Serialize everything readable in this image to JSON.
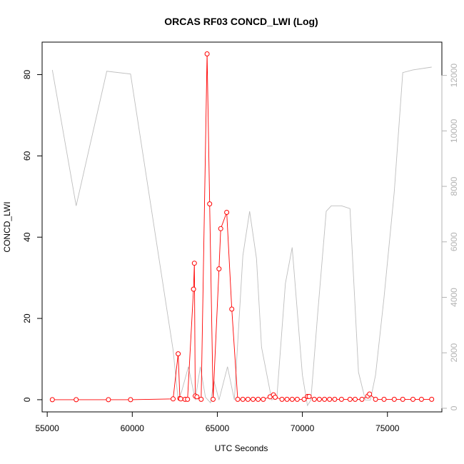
{
  "colors": {
    "primary_series": "#ff0000",
    "secondary_series": "#bebebe",
    "secondary_axis": "#b3b3b3",
    "axes": "#000000"
  },
  "chart_data": {
    "type": "line",
    "title": "ORCAS RF03 CONCD_LWI (Log)",
    "xlabel": "UTC Seconds",
    "ylabel": "CONCD_LWI",
    "y2label": "",
    "xlim": [
      54700,
      78200
    ],
    "ylim": [
      -3,
      88
    ],
    "y2lim": [
      -130,
      13200
    ],
    "x_ticks": [
      55000,
      60000,
      65000,
      70000,
      75000
    ],
    "x_tick_labels": [
      "55000",
      "60000",
      "65000",
      "70000",
      "75000"
    ],
    "y_ticks": [
      0,
      20,
      40,
      60,
      80
    ],
    "y_tick_labels": [
      "0",
      "20",
      "40",
      "60",
      "80"
    ],
    "y2_ticks": [
      0,
      2000,
      4000,
      6000,
      8000,
      10000,
      12000
    ],
    "y2_tick_labels": [
      "0",
      "2000",
      "4000",
      "6000",
      "8000",
      "10000",
      "12000"
    ],
    "grid": false,
    "series": [
      {
        "axis": "left",
        "style": "line+points",
        "x": [
          55300,
          56700,
          58600,
          59900,
          62400,
          62700,
          62800,
          62850,
          63100,
          63250,
          63600,
          63650,
          63700,
          63800,
          64050,
          64400,
          64550,
          64750,
          65100,
          65200,
          65550,
          65850,
          66200,
          66500,
          66800,
          67100,
          67400,
          67700,
          68100,
          68300,
          68400,
          68800,
          69100,
          69400,
          69700,
          70100,
          70300,
          70400,
          70700,
          71000,
          71300,
          71600,
          71900,
          72300,
          72800,
          73100,
          73500,
          73850,
          73950,
          74300,
          74800,
          75400,
          75900,
          76500,
          77000,
          77600
        ],
        "y": [
          0,
          0,
          0,
          0,
          0.2,
          11.3,
          0.3,
          0.2,
          0.1,
          0.1,
          27.2,
          33.6,
          0.9,
          0.7,
          0.1,
          85.1,
          48.2,
          0.1,
          32.2,
          42.1,
          46.1,
          22.3,
          0.1,
          0.1,
          0.1,
          0.1,
          0.1,
          0.1,
          0.7,
          1.2,
          0.6,
          0.1,
          0.1,
          0.1,
          0.1,
          0.1,
          0.8,
          0.8,
          0.1,
          0.1,
          0.1,
          0.1,
          0.1,
          0.1,
          0.1,
          0.1,
          0.1,
          0.9,
          1.4,
          0.1,
          0.1,
          0.1,
          0.1,
          0.1,
          0.1,
          0.1
        ]
      },
      {
        "axis": "right",
        "style": "line",
        "x": [
          55300,
          56700,
          58500,
          59900,
          62400,
          62700,
          62900,
          63300,
          63700,
          64000,
          64300,
          64600,
          64800,
          65100,
          65600,
          66000,
          66500,
          66900,
          67300,
          67600,
          68200,
          68500,
          69000,
          69400,
          70000,
          70300,
          70500,
          70900,
          71400,
          71700,
          72300,
          72800,
          73300,
          73700,
          74000,
          74300,
          74800,
          75400,
          75900,
          76500,
          77600
        ],
        "y": [
          12200,
          7300,
          12150,
          12050,
          2100,
          300,
          600,
          1500,
          300,
          1500,
          400,
          200,
          1000,
          300,
          1500,
          300,
          5500,
          7100,
          5400,
          2200,
          300,
          400,
          4500,
          5800,
          1200,
          100,
          300,
          3400,
          7100,
          7300,
          7300,
          7200,
          1300,
          300,
          300,
          1200,
          4000,
          7800,
          12100,
          12200,
          12300
        ]
      }
    ]
  }
}
